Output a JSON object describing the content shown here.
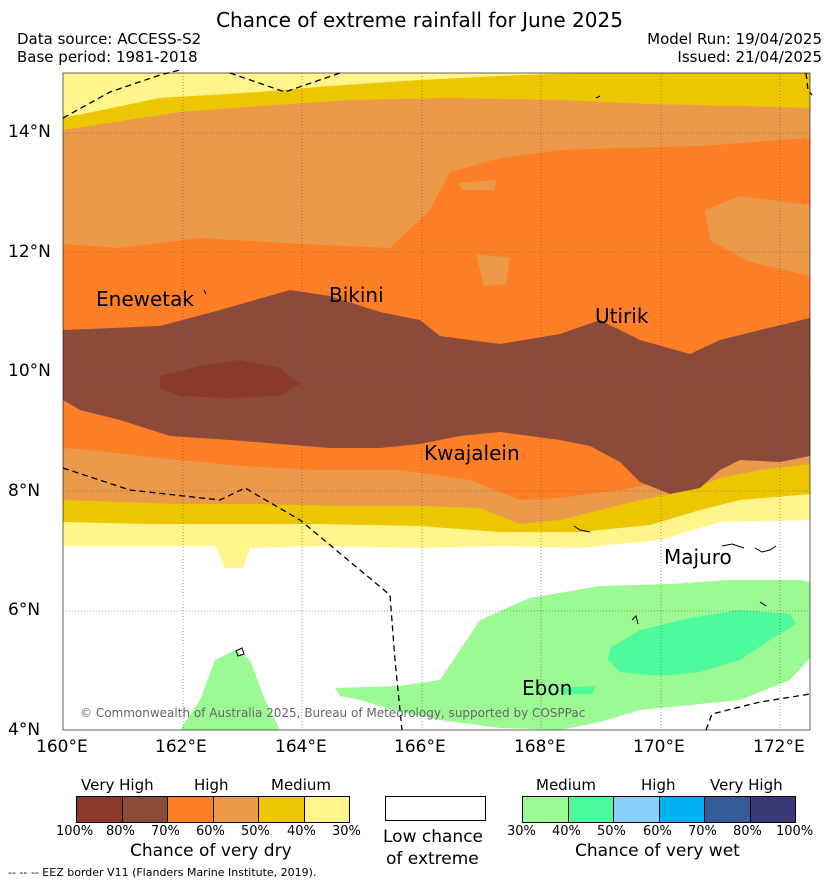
{
  "header": {
    "title": "Chance of extreme rainfall for June 2025",
    "data_source": "Data source: ACCESS-S2",
    "base_period": "Base period: 1981-2018",
    "model_run": "Model Run: 19/04/2025",
    "issued": "Issued: 21/04/2025"
  },
  "map": {
    "lat_ticks": [
      "14°N",
      "12°N",
      "10°N",
      "8°N",
      "6°N",
      "4°N"
    ],
    "lon_ticks": [
      "160°E",
      "162°E",
      "164°E",
      "166°E",
      "168°E",
      "170°E",
      "172°E"
    ],
    "places": [
      "Enewetak",
      "Bikini",
      "Utirik",
      "Kwajalein",
      "Majuro",
      "Ebon"
    ],
    "copyright": "© Commonwealth of Australia 2025, Bureau of Meteorology, supported by COSPPac"
  },
  "legend": {
    "dry": {
      "categories": [
        "Very High",
        "High",
        "Medium"
      ],
      "colors": [
        "#8b3a2a",
        "#8b4a3a",
        "#ff7f27",
        "#eb9a4a",
        "#edc600",
        "#fff58a"
      ],
      "percents": [
        "100%",
        "80%",
        "70%",
        "60%",
        "50%",
        "40%",
        "30%"
      ],
      "title": "Chance of very dry"
    },
    "neutral": {
      "line1": "Low chance",
      "line2": "of extreme"
    },
    "wet": {
      "categories": [
        "Medium",
        "High",
        "Very High"
      ],
      "colors": [
        "#9cfa94",
        "#4dfa9c",
        "#87cefa",
        "#00b0f0",
        "#355c9a",
        "#3a3a78"
      ],
      "percents": [
        "30%",
        "40%",
        "50%",
        "60%",
        "70%",
        "80%",
        "100%"
      ],
      "title": "Chance of very wet"
    }
  },
  "footer": "--  --  -- EEZ border V11 (Flanders Marine Institute, 2019)."
}
